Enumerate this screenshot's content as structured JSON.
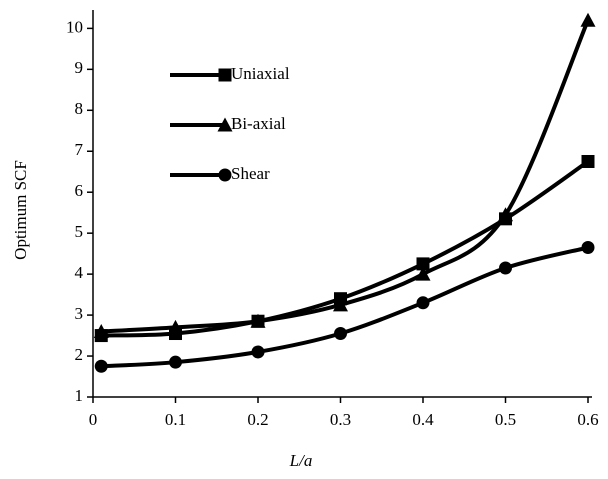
{
  "chart_data": {
    "type": "line",
    "x_label": "L/a",
    "y_label": "Optimum SCF",
    "x": [
      0.01,
      0.1,
      0.2,
      0.3,
      0.4,
      0.5,
      0.6
    ],
    "series": [
      {
        "name": "Uniaxial",
        "color": "#000000",
        "marker": "square",
        "values": [
          2.5,
          2.55,
          2.85,
          3.4,
          4.25,
          5.35,
          6.75
        ]
      },
      {
        "name": "Bi-axial",
        "color": "#000000",
        "marker": "triangle",
        "values": [
          2.6,
          2.7,
          2.85,
          3.25,
          4.0,
          5.45,
          10.2
        ]
      },
      {
        "name": "Shear",
        "color": "#000000",
        "marker": "circle",
        "values": [
          1.75,
          1.85,
          2.1,
          2.55,
          3.3,
          4.15,
          4.65
        ]
      }
    ],
    "xlim": [
      0,
      0.6
    ],
    "xticks": [
      0,
      0.1,
      0.2,
      0.3,
      0.4,
      0.5,
      0.6
    ],
    "ylim": [
      1,
      10.4
    ],
    "yticks": [
      1,
      2,
      3,
      4,
      5,
      6,
      7,
      8,
      9,
      10
    ],
    "smooth": true,
    "grid": false
  }
}
